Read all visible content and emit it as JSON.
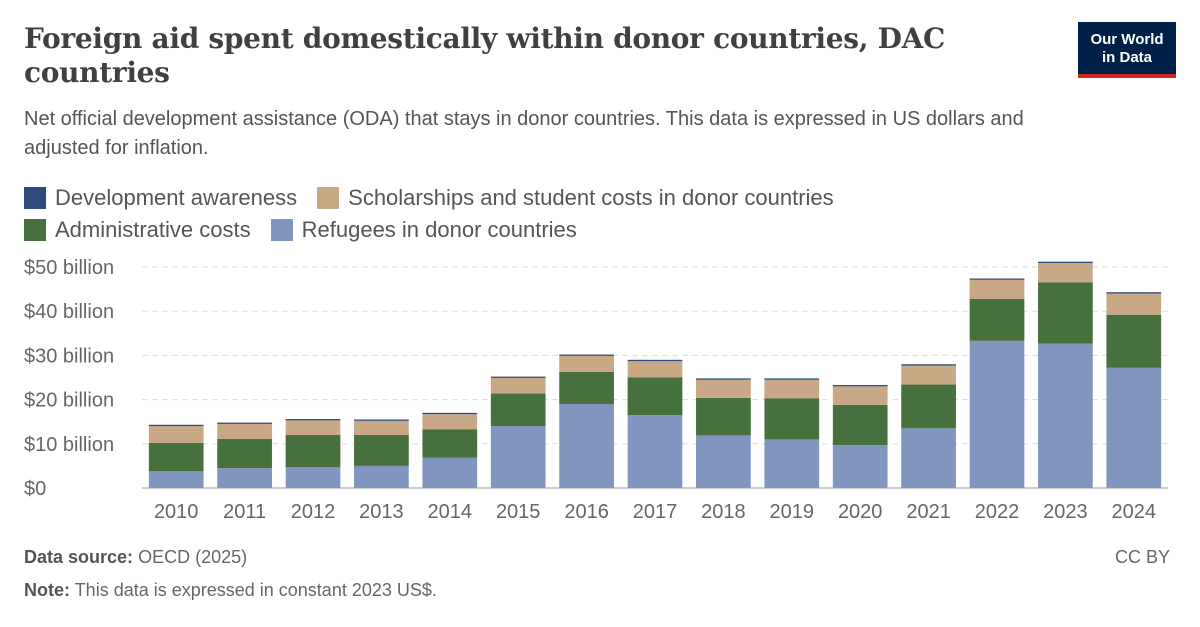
{
  "header": {
    "title": "Foreign aid spent domestically within donor countries, DAC countries",
    "subtitle": "Net official development assistance (ODA) that stays in donor countries. This data is expressed in US dollars and adjusted for inflation.",
    "logo_line1": "Our World",
    "logo_line2": "in Data"
  },
  "colors": {
    "development_awareness": "#2f4b7c",
    "scholarships": "#c8a885",
    "administrative": "#46703d",
    "refugees": "#8196be"
  },
  "legend": [
    {
      "label": "Development awareness",
      "color": "#2f4b7c"
    },
    {
      "label": "Scholarships and student costs in donor countries",
      "color": "#c8a885"
    },
    {
      "label": "Administrative costs",
      "color": "#46703d"
    },
    {
      "label": "Refugees in donor countries",
      "color": "#8196be"
    }
  ],
  "chart_data": {
    "type": "bar",
    "stacked": true,
    "categories": [
      "2010",
      "2011",
      "2012",
      "2013",
      "2014",
      "2015",
      "2016",
      "2017",
      "2018",
      "2019",
      "2020",
      "2021",
      "2022",
      "2023",
      "2024"
    ],
    "series": [
      {
        "name": "Refugees in donor countries",
        "color": "#8196be",
        "values": [
          3.8,
          4.5,
          4.7,
          5.0,
          6.9,
          14.0,
          19.0,
          16.5,
          11.9,
          11.0,
          9.7,
          13.5,
          33.3,
          32.7,
          27.2
        ]
      },
      {
        "name": "Administrative costs",
        "color": "#46703d",
        "values": [
          6.4,
          6.6,
          7.3,
          7.0,
          6.4,
          7.4,
          7.3,
          8.5,
          8.5,
          9.3,
          9.1,
          9.9,
          9.5,
          13.8,
          12.0
        ]
      },
      {
        "name": "Scholarships and student costs in donor countries",
        "color": "#c8a885",
        "values": [
          3.8,
          3.4,
          3.3,
          3.2,
          3.4,
          3.5,
          3.6,
          3.7,
          4.1,
          4.2,
          4.2,
          4.3,
          4.3,
          4.4,
          4.8
        ]
      },
      {
        "name": "Development awareness",
        "color": "#2f4b7c",
        "values": [
          0.3,
          0.3,
          0.3,
          0.3,
          0.3,
          0.3,
          0.3,
          0.3,
          0.3,
          0.3,
          0.3,
          0.3,
          0.3,
          0.3,
          0.3
        ]
      }
    ],
    "y_ticks": [
      {
        "value": 0,
        "label": "$0"
      },
      {
        "value": 10,
        "label": "$10 billion"
      },
      {
        "value": 20,
        "label": "$20 billion"
      },
      {
        "value": 30,
        "label": "$30 billion"
      },
      {
        "value": 40,
        "label": "$40 billion"
      },
      {
        "value": 50,
        "label": "$50 billion"
      }
    ],
    "ylim": [
      0,
      50
    ],
    "grid": true,
    "legend_position": "top"
  },
  "footer": {
    "source_label": "Data source:",
    "source_text": "OECD (2025)",
    "note_label": "Note:",
    "note_text": "This data is expressed in constant 2023 US$.",
    "license": "CC BY"
  }
}
